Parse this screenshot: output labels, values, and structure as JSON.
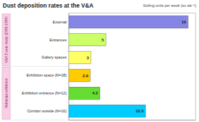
{
  "chart_data": {
    "type": "bar",
    "orientation": "horizontal",
    "title": "Dust deposition rates at the V&A",
    "subtitle": "Soiling units per week (su wk⁻¹)",
    "categories": [
      "External",
      "Entrances",
      "Gallery spaces",
      "Exhibition space (N=18)",
      "Exhibition entrance (N=12)",
      "Corridor outside (N=10)"
    ],
    "groups": [
      "V&A 3-year study (1996-1999)",
      "V&A 3-year study (1996-1999)",
      "V&A 3-year study (1996-1999)",
      "Maharaja exhibition",
      "Maharaja exhibition",
      "Maharaja exhibition"
    ],
    "values": [
      16,
      5,
      3,
      2.9,
      4.2,
      10.3
    ],
    "colors": [
      "#8585e6",
      "#ccff66",
      "#ffff66",
      "#ffcc00",
      "#66dd33",
      "#00ccff"
    ],
    "xlim": [
      0,
      17
    ],
    "data_labels": true,
    "tick_labels": false,
    "grid": false
  }
}
